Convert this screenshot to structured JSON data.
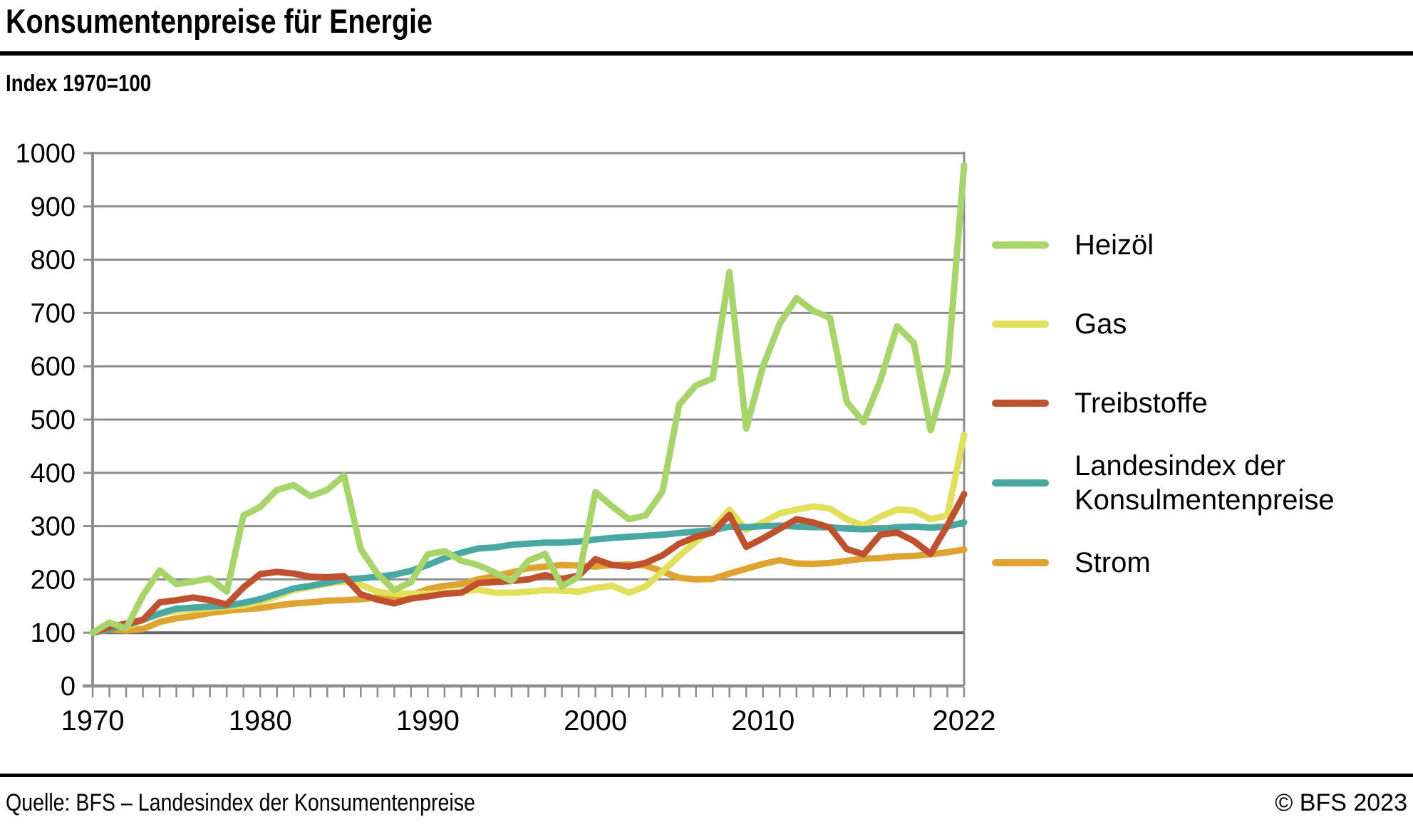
{
  "header": {
    "title": "Konsumentenpreise für Energie",
    "subtitle": "Index 1970=100"
  },
  "footer": {
    "source": "Quelle: BFS – Landesindex der Konsumentenpreise",
    "copyright": "© BFS 2023"
  },
  "chart_data": {
    "type": "line",
    "title": "Konsumentenpreise für Energie",
    "subtitle": "Index 1970=100",
    "xlabel": "",
    "ylabel": "",
    "ylim": [
      0,
      1000
    ],
    "ytick_step": 100,
    "yticks": [
      0,
      100,
      200,
      300,
      400,
      500,
      600,
      700,
      800,
      900,
      1000
    ],
    "xlim": [
      1970,
      2022
    ],
    "xtick_labels": [
      "1970",
      "1980",
      "1990",
      "2000",
      "2010",
      "2022"
    ],
    "xtick_years": [
      1970,
      1980,
      1990,
      2000,
      2010,
      2022
    ],
    "grid": "horizontal",
    "legend_position": "right",
    "x": [
      1970,
      1971,
      1972,
      1973,
      1974,
      1975,
      1976,
      1977,
      1978,
      1979,
      1980,
      1981,
      1982,
      1983,
      1984,
      1985,
      1986,
      1987,
      1988,
      1989,
      1990,
      1991,
      1992,
      1993,
      1994,
      1995,
      1996,
      1997,
      1998,
      1999,
      2000,
      2001,
      2002,
      2003,
      2004,
      2005,
      2006,
      2007,
      2008,
      2009,
      2010,
      2011,
      2012,
      2013,
      2014,
      2015,
      2016,
      2017,
      2018,
      2019,
      2020,
      2021,
      2022
    ],
    "series": [
      {
        "name": "Heizöl",
        "color": "#a8d569",
        "values": [
          100,
          119,
          108,
          170,
          217,
          191,
          196,
          202,
          177,
          320,
          336,
          368,
          377,
          356,
          368,
          395,
          257,
          210,
          180,
          195,
          247,
          253,
          235,
          227,
          213,
          197,
          235,
          248,
          187,
          205,
          364,
          337,
          313,
          320,
          365,
          528,
          564,
          577,
          777,
          483,
          600,
          680,
          728,
          704,
          691,
          533,
          495,
          573,
          675,
          644,
          480,
          590,
          977
        ]
      },
      {
        "name": "Gas",
        "color": "#e2e05a",
        "values": [
          100,
          109,
          111,
          124,
          135,
          141,
          143,
          146,
          149,
          151,
          158,
          168,
          180,
          186,
          192,
          196,
          190,
          177,
          173,
          173,
          173,
          175,
          177,
          181,
          175,
          175,
          177,
          180,
          179,
          177,
          184,
          188,
          175,
          187,
          215,
          244,
          271,
          295,
          331,
          293,
          307,
          324,
          331,
          337,
          333,
          313,
          301,
          318,
          331,
          329,
          313,
          320,
          471
        ]
      },
      {
        "name": "Treibstoffe",
        "color": "#c0512f",
        "values": [
          100,
          111,
          117,
          124,
          157,
          161,
          166,
          161,
          153,
          185,
          210,
          214,
          211,
          205,
          204,
          206,
          172,
          162,
          155,
          164,
          168,
          173,
          175,
          193,
          195,
          197,
          200,
          208,
          201,
          207,
          238,
          227,
          224,
          231,
          245,
          267,
          280,
          288,
          321,
          261,
          277,
          295,
          313,
          307,
          297,
          257,
          247,
          284,
          288,
          272,
          248,
          301,
          360
        ]
      },
      {
        "name": "Landesindex der Konsulmentenpreise",
        "color": "#49a8a1",
        "values": [
          100,
          107,
          114,
          124,
          136,
          145,
          147,
          149,
          151,
          156,
          163,
          173,
          183,
          188,
          194,
          200,
          202,
          205,
          209,
          216,
          227,
          240,
          250,
          258,
          260,
          265,
          267,
          269,
          269,
          271,
          275,
          278,
          280,
          282,
          284,
          287,
          290,
          292,
          299,
          298,
          300,
          301,
          299,
          298,
          298,
          295,
          294,
          295,
          298,
          299,
          297,
          299,
          307
        ]
      },
      {
        "name": "Strom",
        "color": "#dfa430",
        "values": [
          100,
          106,
          104,
          107,
          120,
          127,
          131,
          137,
          141,
          144,
          146,
          151,
          155,
          157,
          160,
          161,
          163,
          166,
          165,
          170,
          182,
          188,
          191,
          200,
          206,
          213,
          221,
          224,
          227,
          226,
          224,
          227,
          228,
          226,
          215,
          203,
          200,
          201,
          211,
          220,
          229,
          236,
          230,
          229,
          231,
          235,
          239,
          240,
          243,
          244,
          247,
          251,
          256
        ]
      }
    ],
    "colors": {
      "grid": "#8d8d8d",
      "grid_base100": "#686868",
      "axis": "#8d8d8d",
      "text": "#000000"
    }
  }
}
